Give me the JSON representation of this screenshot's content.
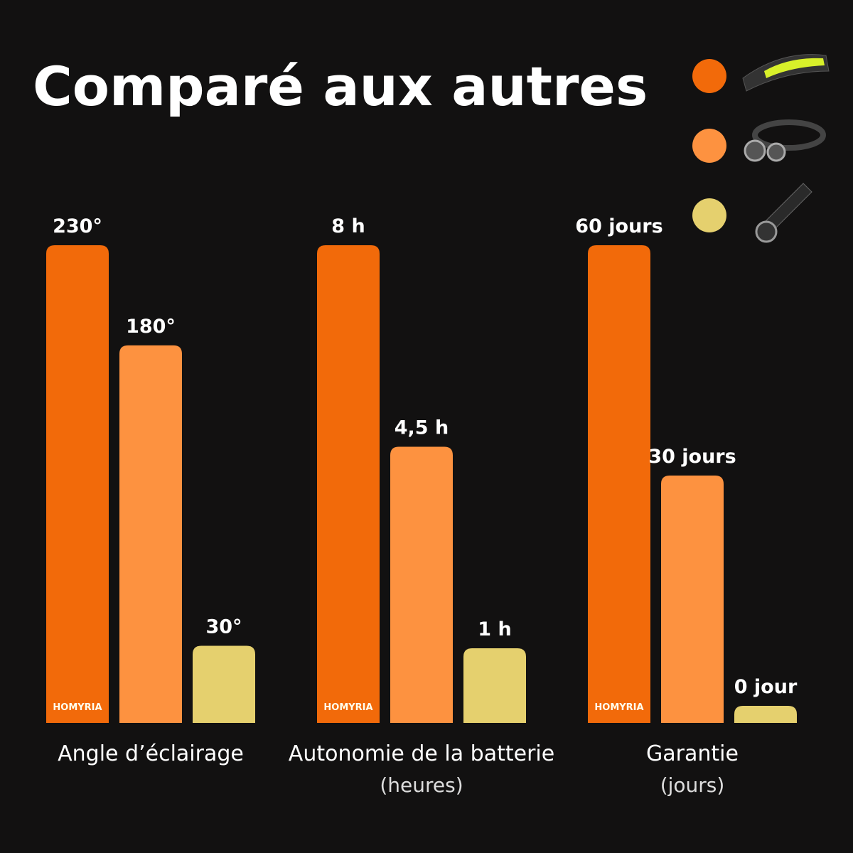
{
  "title": "Comparé aux autres",
  "brand": "HOMYRIA",
  "legend_colors": [
    "#f26a0a",
    "#fd9240",
    "#e5d06e"
  ],
  "chart_data": [
    {
      "type": "bar",
      "title": "Angle d’éclairage",
      "values": [
        230,
        180,
        30
      ],
      "value_labels": [
        "230°",
        "180°",
        "30°"
      ],
      "colors": [
        "#f26a0a",
        "#fd9240",
        "#e5d06e"
      ]
    },
    {
      "type": "bar",
      "title": "Autonomie de la batterie",
      "subtitle": "(heures)",
      "values": [
        8,
        4.5,
        1
      ],
      "value_labels": [
        "8 h",
        "4,5 h",
        "1 h"
      ],
      "colors": [
        "#f26a0a",
        "#fd9240",
        "#e5d06e"
      ]
    },
    {
      "type": "bar",
      "title": "Garantie",
      "subtitle": "(jours)",
      "values": [
        60,
        30,
        0
      ],
      "value_labels": [
        "60 jours",
        "30 jours",
        "0 jour"
      ],
      "colors": [
        "#f26a0a",
        "#fd9240",
        "#e5d06e"
      ]
    }
  ]
}
